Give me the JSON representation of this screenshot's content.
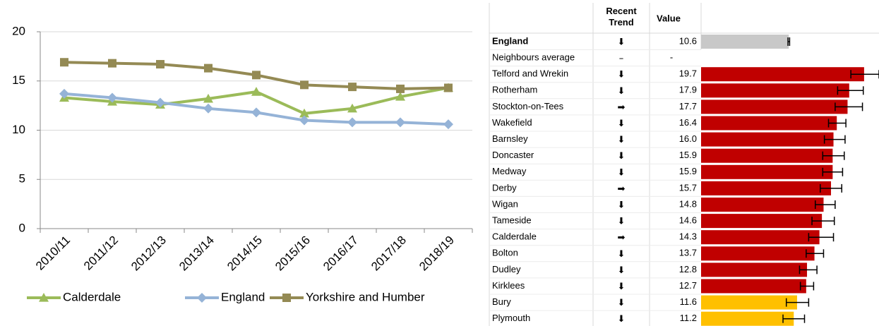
{
  "chart_data": {
    "type": "line",
    "categories": [
      "2010/11",
      "2011/12",
      "2012/13",
      "2013/14",
      "2014/15",
      "2015/16",
      "2016/17",
      "2017/18",
      "2018/19"
    ],
    "series": [
      {
        "name": "Calderdale",
        "color": "#9bbb59",
        "marker": "triangle",
        "values": [
          13.3,
          12.9,
          12.6,
          13.2,
          13.9,
          11.7,
          12.2,
          13.4,
          14.3
        ]
      },
      {
        "name": "England",
        "color": "#95b3d7",
        "marker": "diamond",
        "values": [
          13.7,
          13.3,
          12.8,
          12.2,
          11.8,
          11.0,
          10.8,
          10.8,
          10.6
        ]
      },
      {
        "name": "Yorkshire and Humber",
        "color": "#948a54",
        "marker": "square",
        "values": [
          16.9,
          16.8,
          16.7,
          16.3,
          15.6,
          14.6,
          14.4,
          14.2,
          14.3
        ]
      }
    ],
    "ylim": [
      0,
      20
    ],
    "yticks": [
      0,
      5,
      10,
      15,
      20
    ],
    "grid": true,
    "legend": "bottom"
  },
  "table": {
    "headers": [
      "Recent Trend",
      "Value"
    ],
    "xlim": [
      0,
      21.5
    ],
    "rows": [
      {
        "name": "England",
        "trend": "⬇",
        "trend_color": "#22bb22",
        "value": 10.6,
        "color": "#c8c8c8",
        "ci_low": 10.5,
        "ci_high": 10.7
      },
      {
        "name": "Neighbours average",
        "trend": "–",
        "trend_color": "#333333",
        "value": "-"
      },
      {
        "name": "Telford and Wrekin",
        "trend": "⬇",
        "trend_color": "#22bb22",
        "value": 19.7,
        "color": "#c00000",
        "ci_low": 18.1,
        "ci_high": 21.5
      },
      {
        "name": "Rotherham",
        "trend": "⬇",
        "trend_color": "#22bb22",
        "value": 17.9,
        "color": "#c00000",
        "ci_low": 16.5,
        "ci_high": 19.6
      },
      {
        "name": "Stockton-on-Tees",
        "trend": "➡",
        "trend_color": "#f0901e",
        "value": 17.7,
        "color": "#c00000",
        "ci_low": 16.2,
        "ci_high": 19.5
      },
      {
        "name": "Wakefield",
        "trend": "⬇",
        "trend_color": "#22bb22",
        "value": 16.4,
        "color": "#c00000",
        "ci_low": 15.4,
        "ci_high": 17.5
      },
      {
        "name": "Barnsley",
        "trend": "⬇",
        "trend_color": "#22bb22",
        "value": 16.0,
        "value_label": "16.0",
        "color": "#c00000",
        "ci_low": 14.9,
        "ci_high": 17.4
      },
      {
        "name": "Doncaster",
        "trend": "⬇",
        "trend_color": "#22bb22",
        "value": 15.9,
        "color": "#c00000",
        "ci_low": 14.7,
        "ci_high": 17.3
      },
      {
        "name": "Medway",
        "trend": "⬇",
        "trend_color": "#22bb22",
        "value": 15.9,
        "color": "#c00000",
        "ci_low": 14.7,
        "ci_high": 17.1
      },
      {
        "name": "Derby",
        "trend": "➡",
        "trend_color": "#f0901e",
        "value": 15.7,
        "color": "#c00000",
        "ci_low": 14.4,
        "ci_high": 17.0
      },
      {
        "name": "Wigan",
        "trend": "⬇",
        "trend_color": "#22bb22",
        "value": 14.8,
        "color": "#c00000",
        "ci_low": 13.8,
        "ci_high": 16.2
      },
      {
        "name": "Tameside",
        "trend": "⬇",
        "trend_color": "#22bb22",
        "value": 14.6,
        "color": "#c00000",
        "ci_low": 13.4,
        "ci_high": 16.1
      },
      {
        "name": "Calderdale",
        "trend": "➡",
        "trend_color": "#f0901e",
        "value": 14.3,
        "color": "#c00000",
        "ci_low": 13.0,
        "ci_high": 16.0
      },
      {
        "name": "Bolton",
        "trend": "⬇",
        "trend_color": "#22bb22",
        "value": 13.7,
        "color": "#c00000",
        "ci_low": 12.7,
        "ci_high": 14.8
      },
      {
        "name": "Dudley",
        "trend": "⬇",
        "trend_color": "#22bb22",
        "value": 12.8,
        "color": "#c00000",
        "ci_low": 11.9,
        "ci_high": 14.0
      },
      {
        "name": "Kirklees",
        "trend": "⬇",
        "trend_color": "#22bb22",
        "value": 12.7,
        "color": "#c00000",
        "ci_low": 12.0,
        "ci_high": 13.6
      },
      {
        "name": "Bury",
        "trend": "⬇",
        "trend_color": "#22bb22",
        "value": 11.6,
        "color": "#ffc000",
        "ci_low": 10.3,
        "ci_high": 13.0
      },
      {
        "name": "Plymouth",
        "trend": "⬇",
        "trend_color": "#22bb22",
        "value": 11.2,
        "color": "#ffc000",
        "ci_low": 9.9,
        "ci_high": 12.5
      }
    ]
  }
}
